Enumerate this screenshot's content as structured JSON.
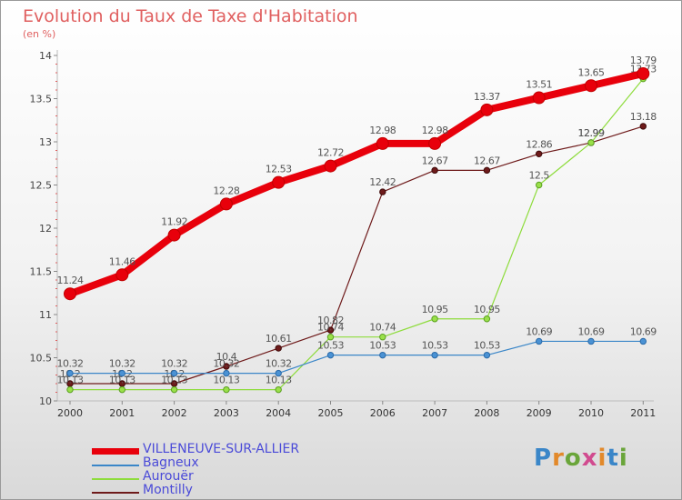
{
  "title": "Evolution du Taux de Taxe d'Habitation",
  "unit": "(en %)",
  "logo": {
    "letters": [
      "P",
      "r",
      "o",
      "x",
      "i",
      "t",
      "i"
    ],
    "colors": [
      "#3a86c8",
      "#e2892a",
      "#6aa53a",
      "#d14b8f",
      "#e2892a",
      "#3a86c8",
      "#6aa53a"
    ]
  },
  "chart_data": {
    "type": "line",
    "title": "Evolution du Taux de Taxe d'Habitation",
    "ylabel": "(en %)",
    "xlabel": "",
    "ylim": [
      10,
      14
    ],
    "yticks": [
      "10",
      "10.5",
      "11",
      "11.5",
      "12",
      "12.5",
      "13",
      "13.5",
      "14"
    ],
    "categories": [
      "2000",
      "2001",
      "2002",
      "2003",
      "2004",
      "2005",
      "2006",
      "2007",
      "2008",
      "2009",
      "2010",
      "2011"
    ],
    "series": [
      {
        "name": "VILLENEUVE-SUR-ALLIER",
        "color": "#e8000b",
        "values": [
          11.24,
          11.46,
          11.92,
          12.28,
          12.53,
          12.72,
          12.98,
          12.98,
          13.37,
          13.51,
          13.65,
          13.79
        ],
        "labels": [
          "11.24",
          "11.46",
          "11.92",
          "12.28",
          "12.53",
          "12.72",
          "12.98",
          "12.98",
          "13.37",
          "13.51",
          "13.65",
          "13.79"
        ]
      },
      {
        "name": "Bagneux",
        "color": "#3a86c8",
        "values": [
          10.32,
          10.32,
          10.32,
          10.32,
          10.32,
          10.53,
          10.53,
          10.53,
          10.53,
          10.69,
          10.69,
          10.69
        ],
        "labels": [
          "10.32",
          "10.32",
          "10.32",
          "10.32",
          "10.32",
          "10.53",
          "10.53",
          "10.53",
          "10.53",
          "10.69",
          "10.69",
          "10.69"
        ]
      },
      {
        "name": "Aurouër",
        "color": "#8edc3c",
        "values": [
          10.13,
          10.13,
          10.13,
          10.13,
          10.13,
          10.74,
          10.74,
          10.95,
          10.95,
          12.5,
          12.99,
          13.73
        ],
        "labels": [
          "10.13",
          "10.13",
          "10.13",
          "10.13",
          "10.13",
          "10.74",
          "10.74",
          "10.95",
          "10.95",
          "12.5",
          "12.99",
          "13.73"
        ]
      },
      {
        "name": "Montilly",
        "color": "#6e1a1a",
        "values": [
          10.2,
          10.2,
          10.2,
          10.4,
          10.61,
          10.82,
          12.42,
          12.67,
          12.67,
          12.86,
          12.99,
          13.18
        ],
        "labels": [
          "10.2",
          "10.2",
          "10.2",
          "10.4",
          "10.61",
          "10.82",
          "12.42",
          "12.67",
          "12.67",
          "12.86",
          "12.99",
          "13.18"
        ]
      }
    ]
  }
}
